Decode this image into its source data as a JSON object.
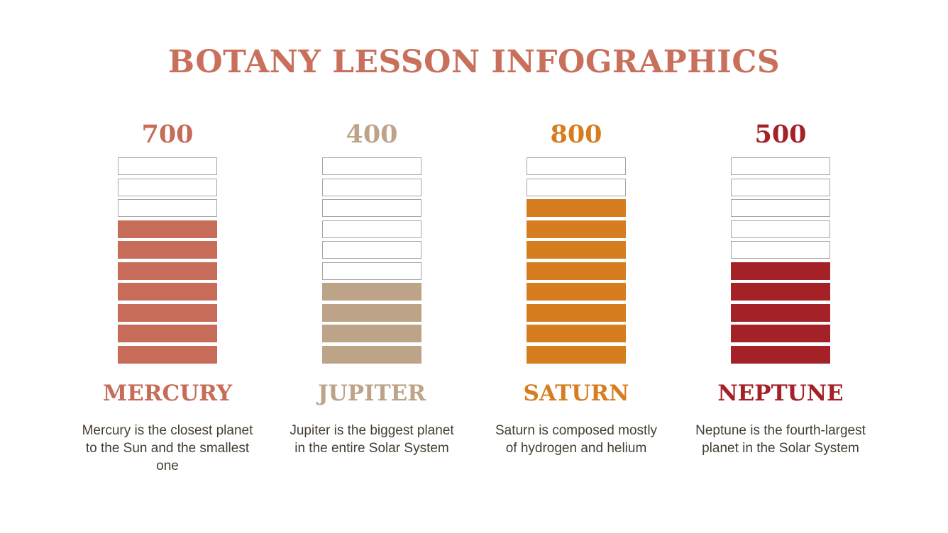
{
  "title": "BOTANY LESSON INFOGRAPHICS",
  "theme": {
    "background_color": "#ffffff",
    "title_color": "#c8705c",
    "description_color": "#453d32",
    "empty_segment_border_color": "#a5a5a5"
  },
  "chart_data": {
    "type": "bar",
    "title": "BOTANY LESSON INFOGRAPHICS",
    "categories": [
      "MERCURY",
      "JUPITER",
      "SATURN",
      "NEPTUNE"
    ],
    "values": [
      700,
      400,
      800,
      500
    ],
    "ylim": [
      0,
      1000
    ],
    "segments_per_bar": 10,
    "units_per_segment": 100,
    "series_colors": [
      "#c66c58",
      "#bda489",
      "#d67e1f",
      "#a42127"
    ],
    "legend": "none",
    "grid": "off",
    "orientation": "vertical-stacked-segments"
  },
  "columns": [
    {
      "value": "700",
      "name": "MERCURY",
      "description": "Mercury is the closest planet to the Sun and the smallest one",
      "color": "#c66c58",
      "segments_total": 10,
      "segments_empty": 3,
      "segments_filled": 7
    },
    {
      "value": "400",
      "name": "JUPITER",
      "description": "Jupiter is the biggest planet in the entire Solar System",
      "color": "#bda489",
      "segments_total": 10,
      "segments_empty": 6,
      "segments_filled": 4
    },
    {
      "value": "800",
      "name": "SATURN",
      "description": "Saturn is composed mostly of hydrogen and helium",
      "color": "#d67e1f",
      "segments_total": 10,
      "segments_empty": 2,
      "segments_filled": 8
    },
    {
      "value": "500",
      "name": "NEPTUNE",
      "description": "Neptune is the fourth-largest planet in the Solar System",
      "color": "#a42127",
      "segments_total": 10,
      "segments_empty": 5,
      "segments_filled": 5
    }
  ]
}
